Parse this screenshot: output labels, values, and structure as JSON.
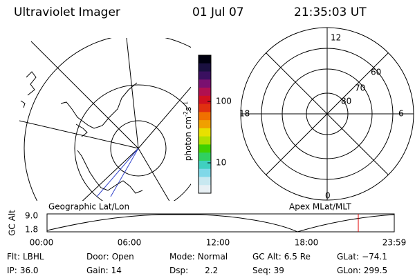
{
  "header": {
    "instrument": "Ultraviolet Imager",
    "date": "01 Jul 07",
    "time": "21:35:03 UT"
  },
  "colorbar": {
    "unit_label": {
      "base": "photon cm",
      "exp1": "-2",
      "mid": "s",
      "exp2": "-1"
    },
    "ticks": [
      "100",
      "10"
    ]
  },
  "polar_grid": {
    "mlt_labels": [
      "12",
      "6",
      "18",
      "0"
    ],
    "mlat_labels": [
      "60",
      "70",
      "80"
    ]
  },
  "orbit_plot": {
    "left_title": "Geographic Lat/Lon",
    "right_title": "Apex MLat/MLT",
    "y_label": "GC Alt",
    "y_ticks": [
      "9.0",
      "1.8"
    ],
    "x_ticks": [
      "00:00",
      "06:00",
      "12:00",
      "18:00",
      "23:59"
    ]
  },
  "status": {
    "rows": [
      [
        {
          "label": "Flt:",
          "value": "LBHL"
        },
        {
          "label": "Door:",
          "value": "Open"
        },
        {
          "label": "Mode:",
          "value": "Normal"
        },
        {
          "label": "GC Alt:",
          "value": "6.5 Re"
        },
        {
          "label": "GLat:",
          "value": "−74.1"
        }
      ],
      [
        {
          "label": "IP:",
          "value": "36.0"
        },
        {
          "label": "Gain:",
          "value": "14"
        },
        {
          "label": "Dsp:",
          "value": "2.2"
        },
        {
          "label": "Seq:",
          "value": "39"
        },
        {
          "label": "GLon:",
          "value": "299.5"
        }
      ]
    ]
  }
}
